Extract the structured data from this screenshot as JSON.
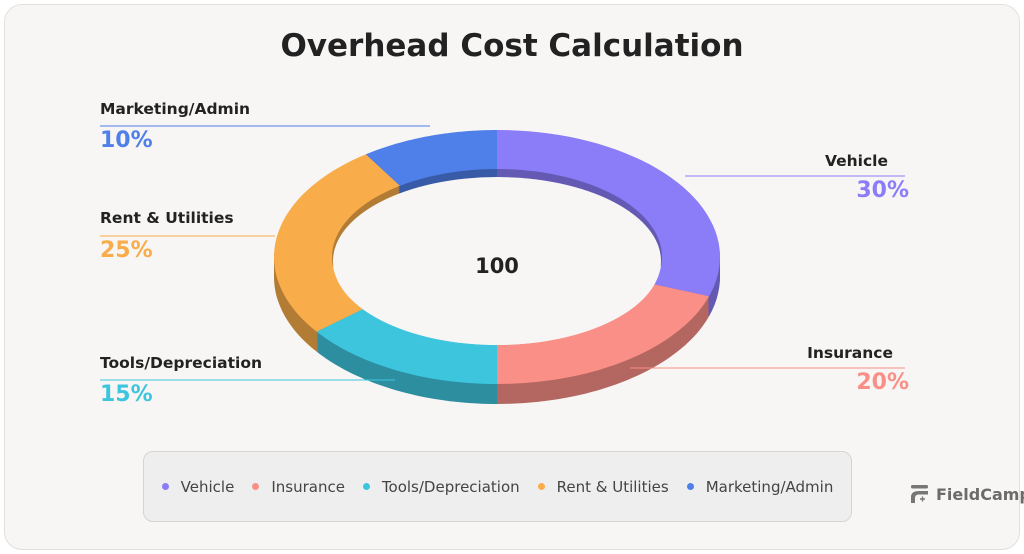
{
  "chart_data": {
    "type": "pie",
    "title": "Overhead Cost Calculation",
    "center_label": "100",
    "categories": [
      "Vehicle",
      "Insurance",
      "Tools/Depreciation",
      "Rent & Utilities",
      "Marketing/Admin"
    ],
    "values": [
      30,
      20,
      15,
      25,
      10
    ],
    "value_labels": [
      "30%",
      "20%",
      "15%",
      "25%",
      "10%"
    ],
    "colors": [
      "#8b7cf8",
      "#f98f86",
      "#3ec5de",
      "#f9ac4a",
      "#4f7fe8"
    ],
    "donut": true,
    "legend_position": "bottom"
  },
  "brand": {
    "name": "FieldCamp",
    "icon": "fieldcamp-logo-icon"
  }
}
